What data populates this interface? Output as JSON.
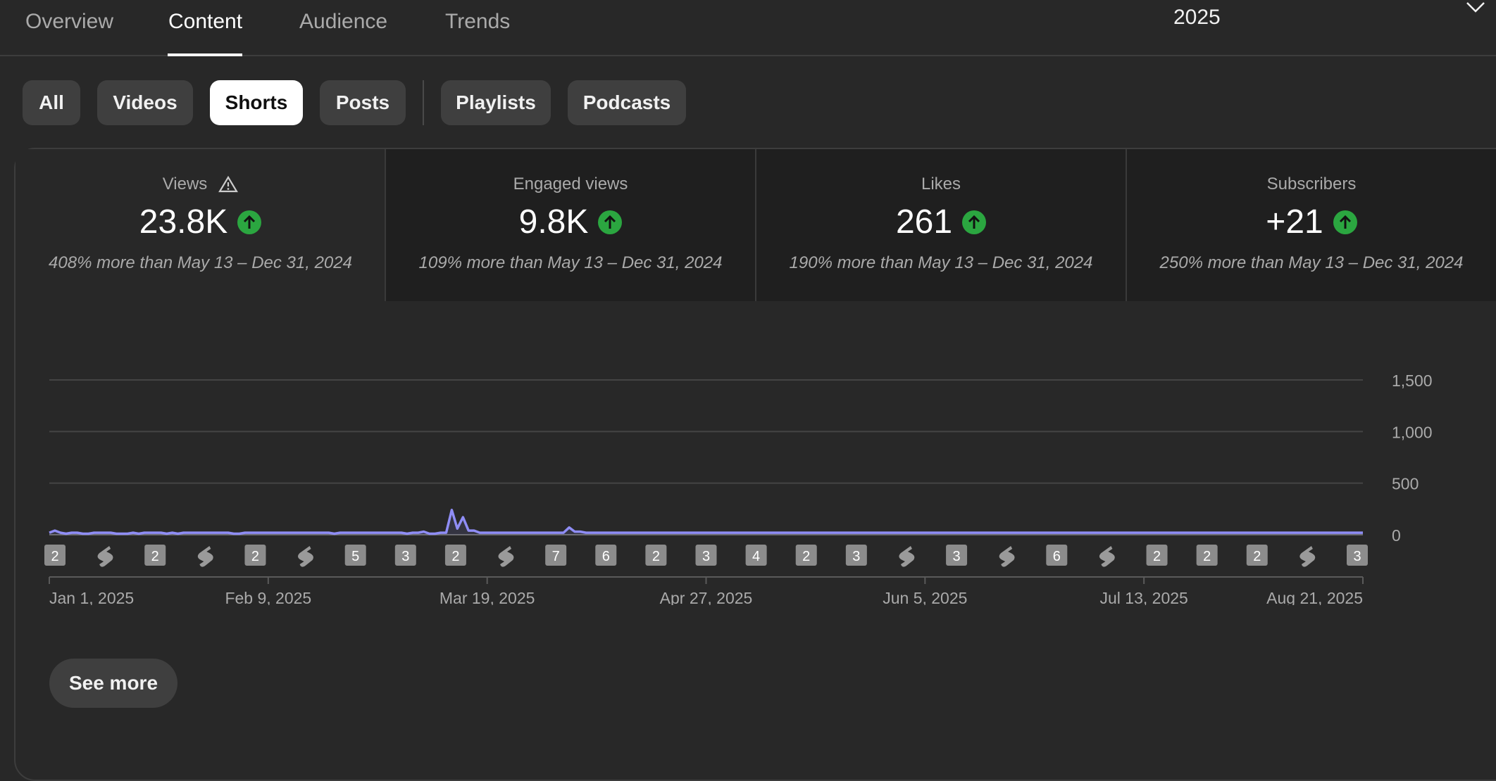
{
  "tabs": [
    {
      "label": "Overview",
      "active": false
    },
    {
      "label": "Content",
      "active": true
    },
    {
      "label": "Audience",
      "active": false
    },
    {
      "label": "Trends",
      "active": false
    }
  ],
  "period": {
    "value": "2025"
  },
  "chips": [
    {
      "label": "All",
      "selected": false
    },
    {
      "label": "Videos",
      "selected": false
    },
    {
      "label": "Shorts",
      "selected": true
    },
    {
      "label": "Posts",
      "selected": false
    },
    {
      "label": "Playlists",
      "selected": false
    },
    {
      "label": "Podcasts",
      "selected": false
    }
  ],
  "metrics": [
    {
      "label": "Views",
      "value": "23.8K",
      "comparison": "408% more than May 13 – Dec 31, 2024",
      "warning": true
    },
    {
      "label": "Engaged views",
      "value": "9.8K",
      "comparison": "109% more than May 13 – Dec 31, 2024"
    },
    {
      "label": "Likes",
      "value": "261",
      "comparison": "190% more than May 13 – Dec 31, 2024"
    },
    {
      "label": "Subscribers",
      "value": "+21",
      "comparison": "250% more than May 13 – Dec 31, 2024"
    }
  ],
  "chart_data": {
    "type": "area",
    "x_start": "Jan 1, 2025",
    "x_end": "Aug 24, 2025",
    "x_tick_labels": [
      "Jan 1, 2025",
      "Feb 9, 2025",
      "Mar 19, 2025",
      "Apr 27, 2025",
      "Jun 5, 2025",
      "Jul 13, 2025",
      "Aug 21, 2025"
    ],
    "y_tick_labels": [
      "0",
      "500",
      "1,000",
      "1,500"
    ],
    "ylim": [
      0,
      1500
    ],
    "grid": true,
    "line_color": "#8f8df5",
    "series": [
      {
        "values": [
          20,
          40,
          20,
          10,
          20,
          20,
          10,
          10,
          20,
          20,
          20,
          20,
          10,
          10,
          10,
          20,
          10,
          20,
          20,
          20,
          20,
          10,
          20,
          10,
          20,
          20,
          20,
          20,
          20,
          20,
          20,
          20,
          20,
          10,
          10,
          20,
          20,
          20,
          20,
          20,
          20,
          20,
          20,
          20,
          20,
          20,
          20,
          20,
          20,
          20,
          20,
          10,
          20,
          20,
          20,
          20,
          20,
          20,
          20,
          20,
          20,
          20,
          20,
          20,
          10,
          20,
          20,
          30,
          10,
          10,
          20,
          20,
          240,
          60,
          170,
          40,
          40,
          20,
          20,
          20,
          20,
          20,
          20,
          20,
          20,
          20,
          20,
          20,
          20,
          20,
          20,
          20,
          20,
          70,
          30,
          30,
          20,
          20,
          20,
          20,
          20,
          20,
          20,
          20,
          20,
          20,
          20,
          20,
          20,
          20,
          20,
          20,
          20,
          20,
          20,
          20,
          20,
          20,
          20,
          20,
          20,
          20,
          20,
          20,
          20,
          20,
          20,
          20,
          20,
          20,
          20,
          20,
          20,
          20,
          20,
          20,
          20,
          20,
          20,
          20,
          20,
          20,
          20,
          20,
          20,
          20,
          20,
          20,
          20,
          20,
          20,
          20,
          20,
          20,
          20,
          20,
          20,
          20,
          20,
          20,
          20,
          20,
          20,
          20,
          20,
          20,
          20,
          20,
          20,
          20,
          20,
          20,
          20,
          20,
          20,
          20,
          20,
          20,
          20,
          20,
          20,
          20,
          20,
          20,
          20,
          20,
          20,
          20,
          20,
          20,
          20,
          20,
          20,
          20,
          20,
          20,
          20,
          20,
          20,
          20,
          20,
          20,
          20,
          20,
          20,
          20,
          20,
          20,
          20,
          20,
          20,
          20,
          20,
          20,
          20,
          20,
          20,
          20,
          20,
          20,
          20,
          20,
          20,
          20,
          20,
          20,
          20,
          20,
          20,
          20,
          20,
          20,
          20,
          20,
          20,
          20
        ]
      }
    ],
    "video_markers": [
      {
        "label": "2",
        "kind": "count"
      },
      {
        "label": "",
        "kind": "shorts"
      },
      {
        "label": "2",
        "kind": "count"
      },
      {
        "label": "",
        "kind": "shorts"
      },
      {
        "label": "2",
        "kind": "count"
      },
      {
        "label": "",
        "kind": "shorts"
      },
      {
        "label": "5",
        "kind": "count"
      },
      {
        "label": "3",
        "kind": "count"
      },
      {
        "label": "2",
        "kind": "count"
      },
      {
        "label": "",
        "kind": "shorts"
      },
      {
        "label": "7",
        "kind": "count"
      },
      {
        "label": "6",
        "kind": "count"
      },
      {
        "label": "2",
        "kind": "count"
      },
      {
        "label": "3",
        "kind": "count"
      },
      {
        "label": "4",
        "kind": "count"
      },
      {
        "label": "2",
        "kind": "count"
      },
      {
        "label": "3",
        "kind": "count"
      },
      {
        "label": "",
        "kind": "shorts"
      },
      {
        "label": "3",
        "kind": "count"
      },
      {
        "label": "",
        "kind": "shorts"
      },
      {
        "label": "6",
        "kind": "count"
      },
      {
        "label": "",
        "kind": "shorts"
      },
      {
        "label": "2",
        "kind": "count"
      },
      {
        "label": "2",
        "kind": "count"
      },
      {
        "label": "2",
        "kind": "count"
      },
      {
        "label": "",
        "kind": "shorts"
      },
      {
        "label": "3",
        "kind": "count"
      }
    ]
  },
  "actions": {
    "see_more": "See more"
  }
}
